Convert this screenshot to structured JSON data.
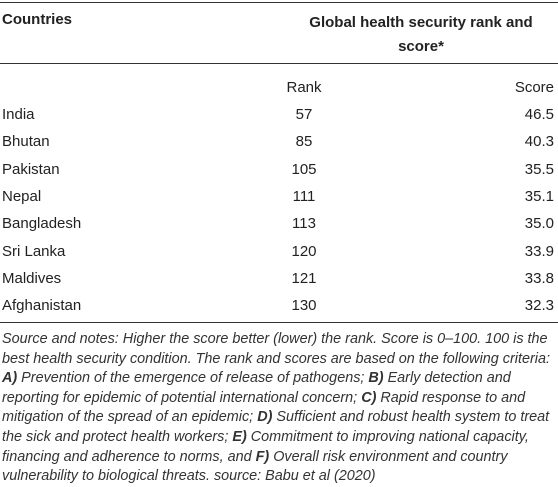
{
  "header": {
    "countries": "Countries",
    "global": "Global health security rank and score*",
    "rank": "Rank",
    "score": "Score"
  },
  "table": {
    "rows": [
      [
        "India",
        57,
        "46.5"
      ],
      [
        "Bhutan",
        85,
        "40.3"
      ],
      [
        "Pakistan",
        105,
        "35.5"
      ],
      [
        "Nepal",
        111,
        "35.1"
      ],
      [
        "Bangladesh",
        113,
        "35.0"
      ],
      [
        "Sri Lanka",
        120,
        "33.9"
      ],
      [
        "Maldives",
        121,
        "33.8"
      ],
      [
        "Afghanistan",
        130,
        "32.3"
      ]
    ]
  },
  "notes": [
    {
      "text": "Source and notes: Higher the score better (lower) the rank. Score is 0–100. 100 is the best health security condition. The rank and scores are based on the following criteria: ",
      "bold": false
    },
    {
      "text": "A)",
      "bold": true
    },
    {
      "text": " Prevention of the emergence of release of pathogens; ",
      "bold": false
    },
    {
      "text": "B)",
      "bold": true
    },
    {
      "text": " Early detection and reporting for epidemic of potential international concern; ",
      "bold": false
    },
    {
      "text": "C)",
      "bold": true
    },
    {
      "text": " Rapid response to and mitigation of the spread of an epidemic; ",
      "bold": false
    },
    {
      "text": "D)",
      "bold": true
    },
    {
      "text": " Sufficient and robust health system to treat the sick and protect health workers; ",
      "bold": false
    },
    {
      "text": "E)",
      "bold": true
    },
    {
      "text": " Commitment to improving national capacity, financing and adherence to norms, and ",
      "bold": false
    },
    {
      "text": "F)",
      "bold": true
    },
    {
      "text": " Overall risk environment and country vulnerability to biological threats. source: Babu et al (2020)",
      "bold": false
    }
  ]
}
